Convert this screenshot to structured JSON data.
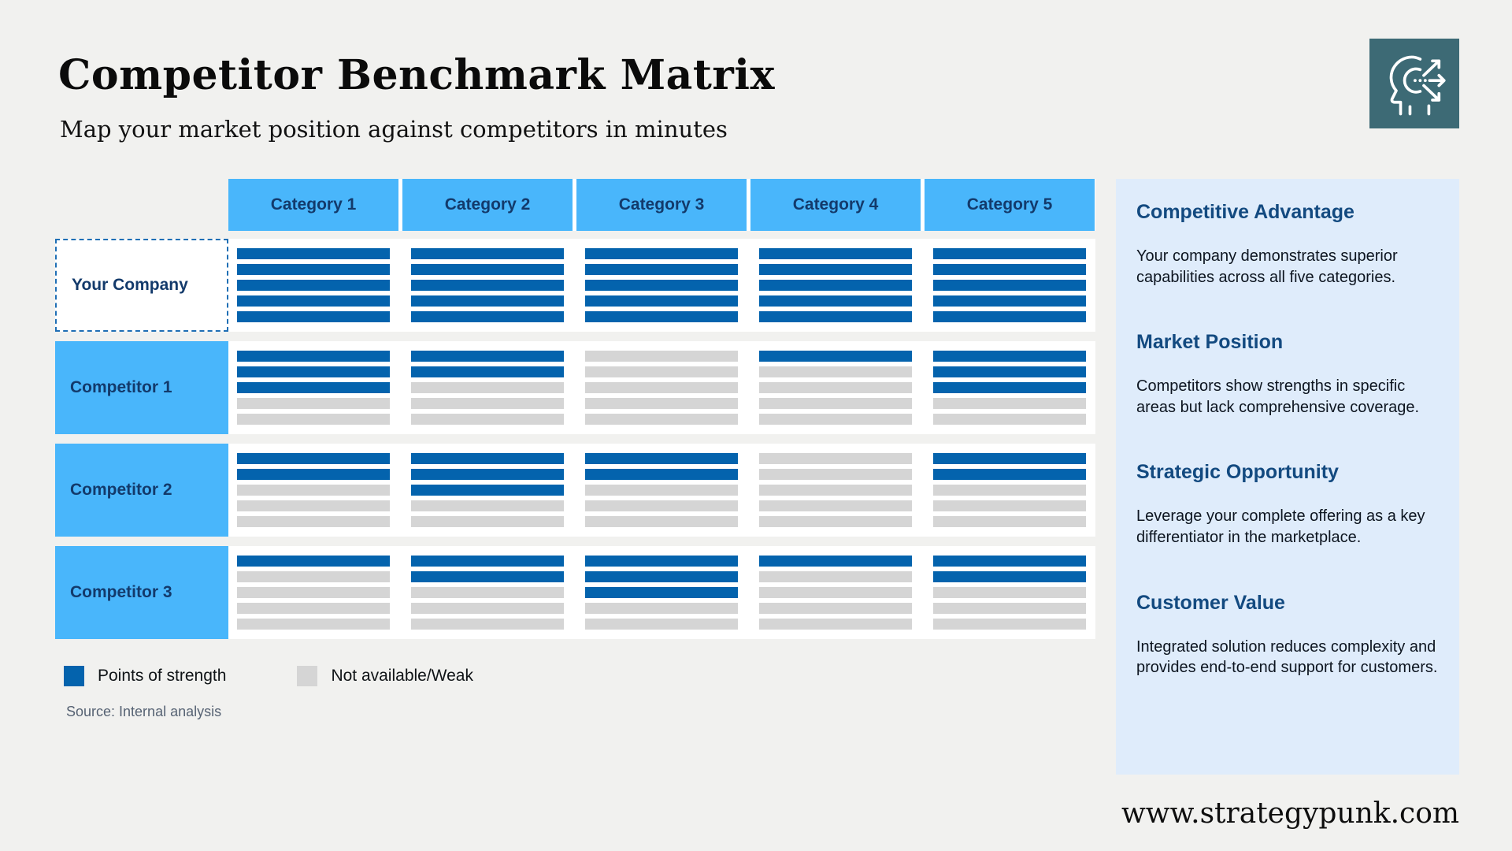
{
  "header": {
    "title": "Competitor Benchmark Matrix",
    "subtitle": "Map your market position against competitors in minutes"
  },
  "icons": {
    "brand": "strategy-head-arrows-icon"
  },
  "matrix": {
    "columns": [
      "Category 1",
      "Category 2",
      "Category 3",
      "Category 4",
      "Category 5"
    ],
    "bars_per_cell": 5,
    "rows": [
      {
        "label": "Your Company",
        "highlight": true,
        "strengths": [
          5,
          5,
          5,
          5,
          5
        ]
      },
      {
        "label": "Competitor 1",
        "highlight": false,
        "strengths": [
          3,
          2,
          0,
          1,
          3
        ]
      },
      {
        "label": "Competitor 2",
        "highlight": false,
        "strengths": [
          2,
          3,
          2,
          0,
          2
        ]
      },
      {
        "label": "Competitor 3",
        "highlight": false,
        "strengths": [
          1,
          2,
          3,
          1,
          2
        ]
      }
    ]
  },
  "chart_data": {
    "type": "heatmap",
    "title": "Competitor Benchmark Matrix",
    "categories": [
      "Category 1",
      "Category 2",
      "Category 3",
      "Category 4",
      "Category 5"
    ],
    "rows": [
      "Your Company",
      "Competitor 1",
      "Competitor 2",
      "Competitor 3"
    ],
    "values": [
      [
        5,
        5,
        5,
        5,
        5
      ],
      [
        3,
        2,
        0,
        1,
        3
      ],
      [
        2,
        3,
        2,
        0,
        2
      ],
      [
        1,
        2,
        3,
        1,
        2
      ]
    ],
    "value_meaning": "strength bars filled out of 5 per category",
    "max_value": 5,
    "legend_entries": [
      "Points of strength",
      "Not available/Weak"
    ],
    "legend_position": "bottom-left"
  },
  "legend": {
    "items": [
      {
        "label": "Points of strength",
        "color": "#0463ad"
      },
      {
        "label": "Not available/Weak",
        "color": "#d5d5d5"
      }
    ]
  },
  "source": {
    "text": "Source: Internal analysis"
  },
  "sidebar": {
    "sections": [
      {
        "heading": "Competitive Advantage",
        "body": "Your company demonstrates superior capabilities across all five categories."
      },
      {
        "heading": "Market Position",
        "body": "Competitors show strengths in specific areas but lack comprehensive coverage."
      },
      {
        "heading": "Strategic Opportunity",
        "body": "Leverage your complete offering as a key differentiator in the marketplace."
      },
      {
        "heading": "Customer Value",
        "body": "Integrated solution reduces complexity and provides end-to-end support for customers."
      }
    ]
  },
  "footer": {
    "website": "www.strategypunk.com"
  },
  "colors": {
    "page_bg": "#f1f1ef",
    "accent_light_blue": "#49b6fb",
    "strength_blue": "#0463ad",
    "weak_gray": "#d5d5d5",
    "navy_text": "#133a6b",
    "sidebar_bg": "#dfecfb",
    "sidebar_heading": "#134a80",
    "brand_teal": "#3d6a75",
    "dashed_border": "#1f6fb5"
  }
}
